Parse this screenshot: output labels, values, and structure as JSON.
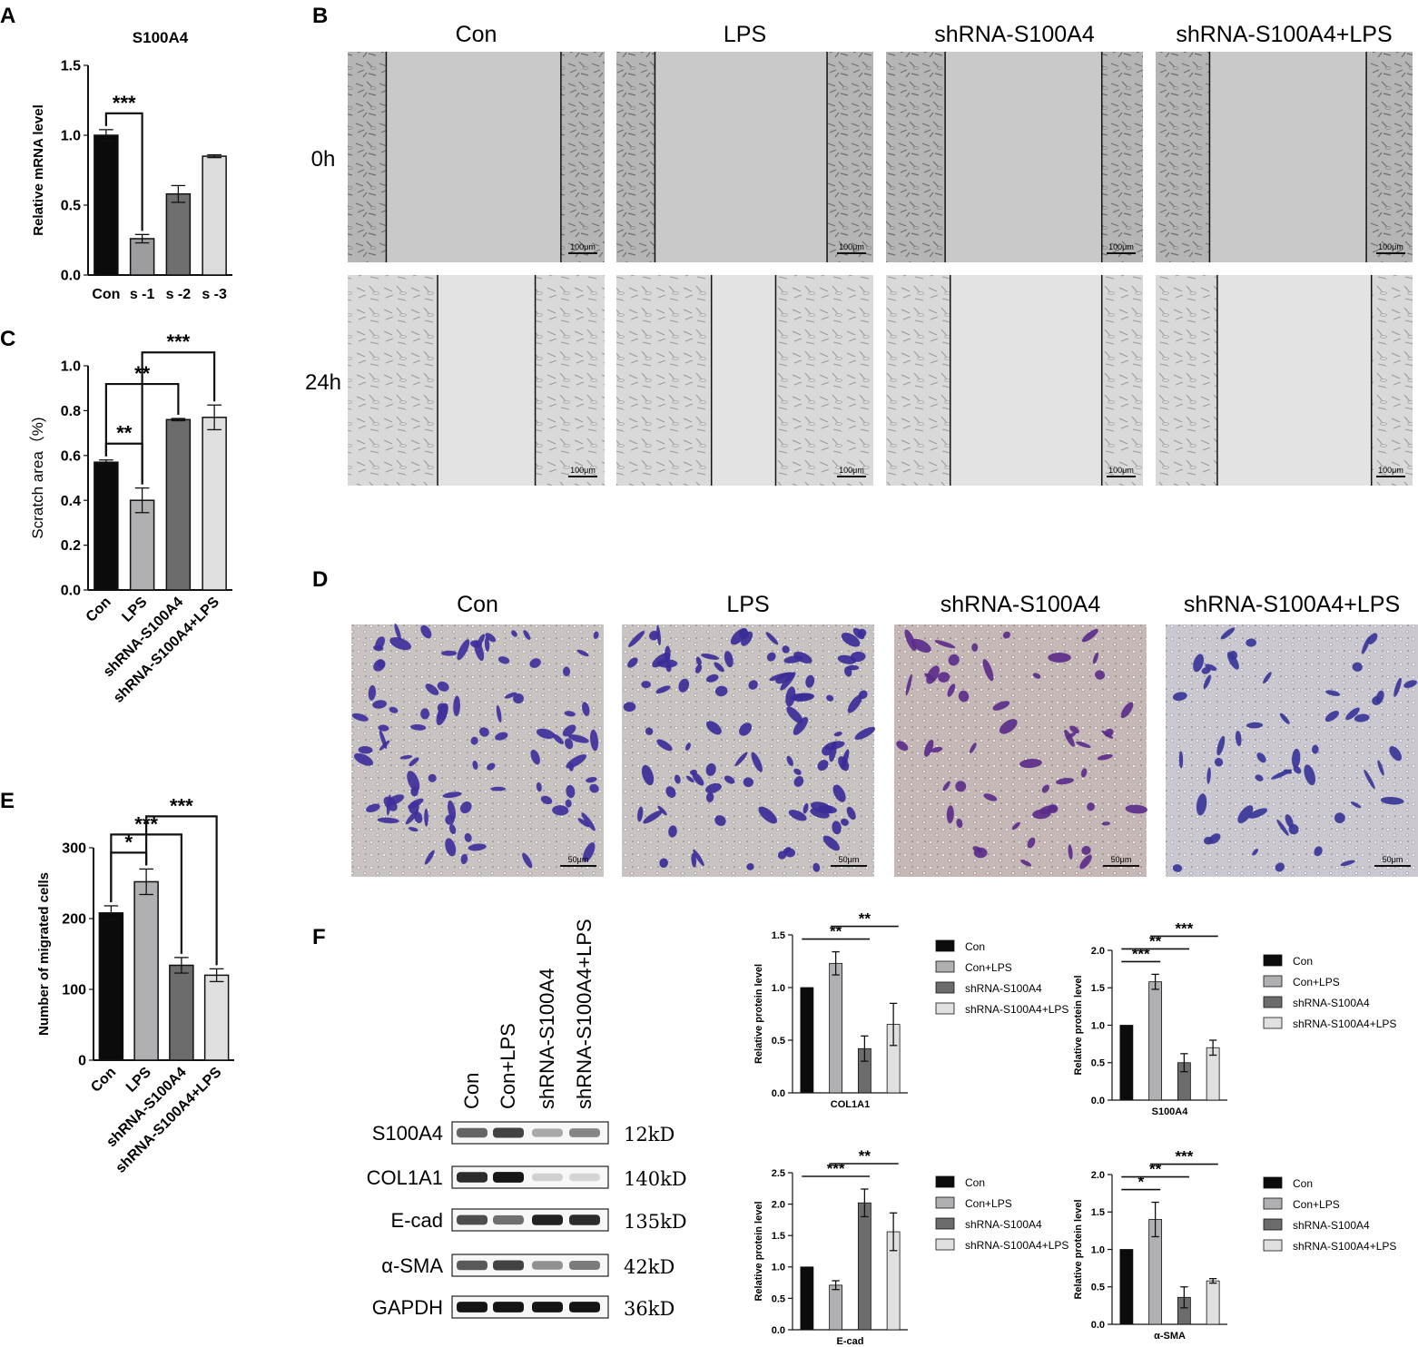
{
  "panel_letters": [
    "A",
    "B",
    "C",
    "D",
    "E",
    "F"
  ],
  "colors": {
    "black": "#0b0b0b",
    "dark_gray": "#5d5d5d",
    "mid_gray": "#8a8a8a",
    "light_gray": "#b9b9b9",
    "lighter_gray": "#dedede",
    "crystal_violet": "#3d2f9a",
    "membrane": "#c7c2c3"
  },
  "panel_b": {
    "headers": [
      "Con",
      "LPS",
      "shRNA-S100A4",
      "shRNA-S100A4+LPS"
    ],
    "rows": [
      "0h",
      "24h"
    ],
    "scale": "100μm"
  },
  "panel_d": {
    "headers": [
      "Con",
      "LPS",
      "shRNA-S100A4",
      "shRNA-S100A4+LPS"
    ],
    "scale": "50μm"
  },
  "panel_f_blot": {
    "lanes": [
      "Con",
      "Con+LPS",
      "shRNA-S100A4",
      "shRNA-S100A4+LPS"
    ],
    "proteins": [
      {
        "name": "S100A4",
        "size": "12kD",
        "intensity": [
          0.6,
          0.75,
          0.3,
          0.45
        ]
      },
      {
        "name": "COL1A1",
        "size": "140kD",
        "intensity": [
          0.85,
          0.95,
          0.12,
          0.1
        ]
      },
      {
        "name": "E-cad",
        "size": "135kD",
        "intensity": [
          0.7,
          0.55,
          0.9,
          0.85
        ]
      },
      {
        "name": "α-SMA",
        "size": "42kD",
        "intensity": [
          0.65,
          0.75,
          0.4,
          0.5
        ]
      },
      {
        "name": "GAPDH",
        "size": "36kD",
        "intensity": [
          0.95,
          0.95,
          0.95,
          0.95
        ]
      }
    ]
  },
  "chart_data": [
    {
      "panel": "A",
      "type": "bar",
      "title": "S100A4",
      "categories": [
        "Con",
        "s -1",
        "s -2",
        "s -3"
      ],
      "values": [
        1.0,
        0.26,
        0.58,
        0.85
      ],
      "errors": [
        0.04,
        0.03,
        0.06,
        0.01
      ],
      "ylabel": "Relative mRNA level",
      "xlabel": "",
      "ylim": [
        0,
        1.5
      ],
      "yticks": [
        "0.0",
        "0.5",
        "1.0",
        "1.5"
      ],
      "annotations": [
        {
          "from": 0,
          "to": 1,
          "label": "***",
          "style": "bracket"
        }
      ]
    },
    {
      "panel": "C",
      "type": "bar",
      "title": "",
      "categories": [
        "Con",
        "LPS",
        "shRNA-S100A4",
        "shRNA-S100A4+LPS"
      ],
      "values": [
        0.57,
        0.4,
        0.76,
        0.77
      ],
      "errors": [
        0.01,
        0.055,
        0.005,
        0.055
      ],
      "ylabel": "Scratch area（%)",
      "xlabel": "",
      "ylim": [
        0,
        1.0
      ],
      "yticks": [
        "0.0",
        "0.2",
        "0.4",
        "0.6",
        "0.8",
        "1.0"
      ],
      "annotations": [
        {
          "from": 0,
          "to": 1,
          "label": "**",
          "style": "bracket"
        },
        {
          "from": 0,
          "to": 2,
          "label": "**",
          "style": "bracket"
        },
        {
          "from": 1,
          "to": 3,
          "label": "***",
          "style": "bracket"
        }
      ]
    },
    {
      "panel": "E",
      "type": "bar",
      "title": "",
      "categories": [
        "Con",
        "LPS",
        "shRNA-S100A4",
        "shRNA-S100A4+LPS"
      ],
      "values": [
        208,
        252,
        134,
        120
      ],
      "errors": [
        10,
        18,
        11,
        9
      ],
      "ylabel": "Number of migrated cells",
      "xlabel": "",
      "ylim": [
        0,
        300
      ],
      "yticks": [
        "0",
        "100",
        "200",
        "300"
      ],
      "annotations": [
        {
          "from": 0,
          "to": 1,
          "label": "*",
          "style": "bracket"
        },
        {
          "from": 0,
          "to": 2,
          "label": "***",
          "style": "bracket"
        },
        {
          "from": 1,
          "to": 3,
          "label": "***",
          "style": "bracket"
        }
      ]
    },
    {
      "panel": "F1",
      "type": "bar",
      "title": "",
      "categories": [
        "Con",
        "Con+LPS",
        "shRNA-S100A4",
        "shRNA-S100A4+LPS"
      ],
      "values": [
        1.0,
        1.23,
        0.42,
        0.65
      ],
      "errors": [
        0,
        0.11,
        0.12,
        0.2
      ],
      "ylabel": "Relative protein level",
      "xlabel": "COL1A1",
      "ylim": [
        0,
        1.5
      ],
      "yticks": [
        "0.0",
        "0.5",
        "1.0",
        "1.5"
      ],
      "legend": [
        "Con",
        "Con+LPS",
        "shRNA-S100A4",
        "shRNA-S100A4+LPS"
      ],
      "legend_position": "right",
      "annotations": [
        {
          "from": 0,
          "to": 2,
          "label": "**",
          "style": "line"
        },
        {
          "from": 1,
          "to": 3,
          "label": "**",
          "style": "line"
        }
      ]
    },
    {
      "panel": "F2",
      "type": "bar",
      "title": "",
      "categories": [
        "Con",
        "Con+LPS",
        "shRNA-S100A4",
        "shRNA-S100A4+LPS"
      ],
      "values": [
        1.0,
        1.58,
        0.5,
        0.7
      ],
      "errors": [
        0,
        0.1,
        0.12,
        0.1
      ],
      "ylabel": "Relative protein level",
      "xlabel": "S100A4",
      "ylim": [
        0,
        2.0
      ],
      "yticks": [
        "0.0",
        "0.5",
        "1.0",
        "1.5",
        "2.0"
      ],
      "legend": [
        "Con",
        "Con+LPS",
        "shRNA-S100A4",
        "shRNA-S100A4+LPS"
      ],
      "legend_position": "right",
      "annotations": [
        {
          "from": 0,
          "to": 1,
          "label": "***",
          "style": "line"
        },
        {
          "from": 0,
          "to": 2,
          "label": "**",
          "style": "line"
        },
        {
          "from": 1,
          "to": 3,
          "label": "***",
          "style": "line"
        }
      ]
    },
    {
      "panel": "F3",
      "type": "bar",
      "title": "",
      "categories": [
        "Con",
        "Con+LPS",
        "shRNA-S100A4",
        "shRNA-S100A4+LPS"
      ],
      "values": [
        1.0,
        0.71,
        2.02,
        1.56
      ],
      "errors": [
        0,
        0.07,
        0.22,
        0.3
      ],
      "ylabel": "Relative protein level",
      "xlabel": "E-cad",
      "ylim": [
        0,
        2.5
      ],
      "yticks": [
        "0.0",
        "0.5",
        "1.0",
        "1.5",
        "2.0",
        "2.5"
      ],
      "legend": [
        "Con",
        "Con+LPS",
        "shRNA-S100A4",
        "shRNA-S100A4+LPS"
      ],
      "legend_position": "right",
      "annotations": [
        {
          "from": 0,
          "to": 2,
          "label": "***",
          "style": "line"
        },
        {
          "from": 1,
          "to": 3,
          "label": "**",
          "style": "line"
        }
      ]
    },
    {
      "panel": "F4",
      "type": "bar",
      "title": "",
      "categories": [
        "Con",
        "Con+LPS",
        "shRNA-S100A4",
        "shRNA-S100A4+LPS"
      ],
      "values": [
        1.0,
        1.4,
        0.36,
        0.58
      ],
      "errors": [
        0,
        0.23,
        0.14,
        0.03
      ],
      "ylabel": "Relative protein level",
      "xlabel": "α-SMA",
      "ylim": [
        0,
        2.0
      ],
      "yticks": [
        "0.0",
        "0.5",
        "1.0",
        "1.5",
        "2.0"
      ],
      "legend": [
        "Con",
        "Con+LPS",
        "shRNA-S100A4",
        "shRNA-S100A4+LPS"
      ],
      "legend_position": "right",
      "annotations": [
        {
          "from": 0,
          "to": 1,
          "label": "*",
          "style": "line"
        },
        {
          "from": 0,
          "to": 2,
          "label": "**",
          "style": "line"
        },
        {
          "from": 1,
          "to": 3,
          "label": "***",
          "style": "line"
        }
      ]
    }
  ]
}
